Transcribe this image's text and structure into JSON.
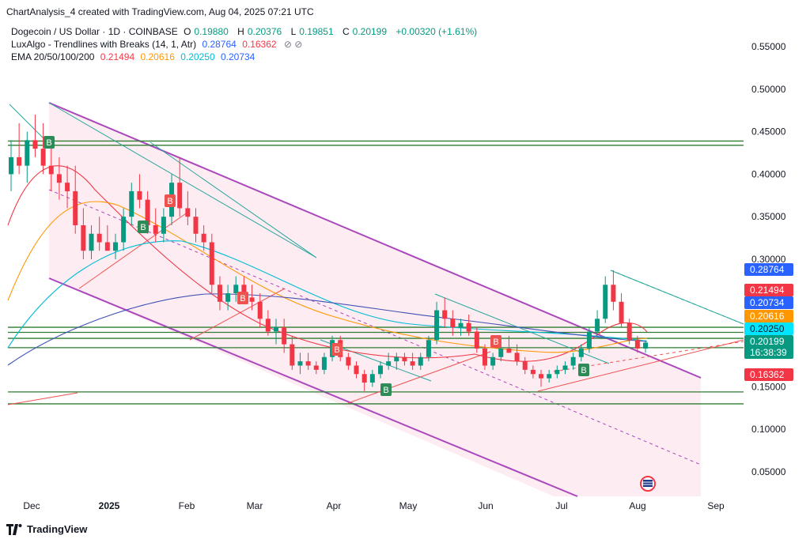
{
  "header": {
    "watermark": "ChartAnalysis_4 created with TradingView.com, Aug 04, 2025 07:21 UTC"
  },
  "legend": {
    "symbol": "Dogecoin / US Dollar · 1D · COINBASE",
    "open_label": "O",
    "open": "0.19880",
    "high_label": "H",
    "high": "0.20376",
    "low_label": "L",
    "low": "0.19851",
    "close_label": "C",
    "close": "0.20199",
    "change": "+0.00320 (+1.61%)",
    "lux_name": "LuxAlgo - Trendlines with Breaks (14, 1, Atr)",
    "lux_v1": "0.28764",
    "lux_v2": "0.16362",
    "ema_name": "EMA 20/50/100/200",
    "ema20": "0.21494",
    "ema50": "0.20616",
    "ema100": "0.20250",
    "ema200": "0.20734",
    "icons": "⊘ ⊘"
  },
  "chart_data": {
    "type": "candlestick",
    "y_ticks": [
      "0.55000",
      "0.50000",
      "0.45000",
      "0.40000",
      "0.35000",
      "0.30000",
      "0.15000",
      "0.10000",
      "0.05000"
    ],
    "x_ticks": [
      "Dec",
      "2025",
      "Feb",
      "Mar",
      "Apr",
      "May",
      "Jun",
      "Jul",
      "Aug",
      "Sep"
    ],
    "ylim": [
      0.02,
      0.575
    ],
    "price_labels": [
      {
        "value": 0.28764,
        "text": "0.28764",
        "color": "#2962ff"
      },
      {
        "value": 0.21494,
        "text": "0.21494",
        "color": "#f23645"
      },
      {
        "value": 0.20734,
        "text": "0.20734",
        "color": "#2962ff"
      },
      {
        "value": 0.20616,
        "text": "0.20616",
        "color": "#ff9800"
      },
      {
        "value": 0.2025,
        "text": "0.20250",
        "color": "#00e5ff"
      },
      {
        "value": 0.20199,
        "text": "0.20199",
        "color": "#089981",
        "sub": "16:38:39"
      },
      {
        "value": 0.16362,
        "text": "0.16362",
        "color": "#f23645"
      }
    ],
    "horizontal_levels": [
      0.439,
      0.434,
      0.22,
      0.214,
      0.207,
      0.196,
      0.144,
      0.13
    ],
    "markers": [
      {
        "date": "Dec 8",
        "text": "B",
        "kind": "buy"
      },
      {
        "date": "Jan 15",
        "text": "B",
        "kind": "buy"
      },
      {
        "date": "Jan 20",
        "text": "B",
        "kind": "sell"
      },
      {
        "date": "Feb 27",
        "text": "B",
        "kind": "sell"
      },
      {
        "date": "Apr 1",
        "text": "B",
        "kind": "sell"
      },
      {
        "date": "Apr 22",
        "text": "B",
        "kind": "buy"
      },
      {
        "date": "Jun 5",
        "text": "B",
        "kind": "sell"
      },
      {
        "date": "Jul 10",
        "text": "B",
        "kind": "buy"
      }
    ],
    "ohlc": [
      [
        0.4,
        0.44,
        0.38,
        0.42
      ],
      [
        0.42,
        0.46,
        0.4,
        0.41
      ],
      [
        0.41,
        0.45,
        0.39,
        0.44
      ],
      [
        0.44,
        0.47,
        0.42,
        0.43
      ],
      [
        0.43,
        0.46,
        0.4,
        0.41
      ],
      [
        0.41,
        0.44,
        0.38,
        0.4
      ],
      [
        0.4,
        0.42,
        0.37,
        0.39
      ],
      [
        0.39,
        0.41,
        0.36,
        0.38
      ],
      [
        0.38,
        0.41,
        0.33,
        0.34
      ],
      [
        0.34,
        0.36,
        0.3,
        0.31
      ],
      [
        0.31,
        0.34,
        0.3,
        0.33
      ],
      [
        0.33,
        0.35,
        0.31,
        0.32
      ],
      [
        0.32,
        0.34,
        0.31,
        0.31
      ],
      [
        0.31,
        0.33,
        0.3,
        0.32
      ],
      [
        0.32,
        0.36,
        0.31,
        0.35
      ],
      [
        0.35,
        0.39,
        0.34,
        0.38
      ],
      [
        0.38,
        0.4,
        0.36,
        0.37
      ],
      [
        0.37,
        0.38,
        0.33,
        0.34
      ],
      [
        0.34,
        0.36,
        0.32,
        0.33
      ],
      [
        0.33,
        0.36,
        0.32,
        0.35
      ],
      [
        0.35,
        0.4,
        0.34,
        0.39
      ],
      [
        0.39,
        0.42,
        0.35,
        0.36
      ],
      [
        0.36,
        0.38,
        0.34,
        0.35
      ],
      [
        0.35,
        0.36,
        0.32,
        0.33
      ],
      [
        0.33,
        0.34,
        0.31,
        0.32
      ],
      [
        0.32,
        0.33,
        0.26,
        0.27
      ],
      [
        0.27,
        0.28,
        0.24,
        0.25
      ],
      [
        0.25,
        0.27,
        0.24,
        0.26
      ],
      [
        0.26,
        0.28,
        0.25,
        0.27
      ],
      [
        0.27,
        0.28,
        0.25,
        0.255
      ],
      [
        0.255,
        0.27,
        0.24,
        0.25
      ],
      [
        0.25,
        0.26,
        0.22,
        0.23
      ],
      [
        0.23,
        0.24,
        0.21,
        0.215
      ],
      [
        0.215,
        0.23,
        0.2,
        0.22
      ],
      [
        0.22,
        0.23,
        0.19,
        0.2
      ],
      [
        0.2,
        0.21,
        0.17,
        0.175
      ],
      [
        0.175,
        0.19,
        0.165,
        0.18
      ],
      [
        0.18,
        0.19,
        0.17,
        0.175
      ],
      [
        0.175,
        0.18,
        0.165,
        0.17
      ],
      [
        0.17,
        0.19,
        0.165,
        0.185
      ],
      [
        0.185,
        0.21,
        0.18,
        0.205
      ],
      [
        0.205,
        0.21,
        0.18,
        0.185
      ],
      [
        0.185,
        0.19,
        0.17,
        0.175
      ],
      [
        0.175,
        0.18,
        0.16,
        0.165
      ],
      [
        0.165,
        0.17,
        0.145,
        0.155
      ],
      [
        0.155,
        0.17,
        0.15,
        0.165
      ],
      [
        0.165,
        0.18,
        0.16,
        0.175
      ],
      [
        0.175,
        0.19,
        0.17,
        0.18
      ],
      [
        0.18,
        0.19,
        0.17,
        0.185
      ],
      [
        0.185,
        0.19,
        0.175,
        0.18
      ],
      [
        0.18,
        0.19,
        0.17,
        0.175
      ],
      [
        0.175,
        0.19,
        0.17,
        0.185
      ],
      [
        0.185,
        0.21,
        0.18,
        0.205
      ],
      [
        0.205,
        0.25,
        0.2,
        0.24
      ],
      [
        0.24,
        0.255,
        0.22,
        0.23
      ],
      [
        0.23,
        0.24,
        0.21,
        0.22
      ],
      [
        0.22,
        0.23,
        0.21,
        0.225
      ],
      [
        0.225,
        0.235,
        0.21,
        0.215
      ],
      [
        0.215,
        0.22,
        0.19,
        0.195
      ],
      [
        0.195,
        0.2,
        0.17,
        0.175
      ],
      [
        0.175,
        0.19,
        0.17,
        0.185
      ],
      [
        0.185,
        0.2,
        0.18,
        0.195
      ],
      [
        0.195,
        0.21,
        0.19,
        0.19
      ],
      [
        0.19,
        0.2,
        0.175,
        0.18
      ],
      [
        0.18,
        0.185,
        0.165,
        0.17
      ],
      [
        0.17,
        0.175,
        0.16,
        0.165
      ],
      [
        0.165,
        0.17,
        0.15,
        0.16
      ],
      [
        0.16,
        0.17,
        0.155,
        0.165
      ],
      [
        0.165,
        0.175,
        0.16,
        0.17
      ],
      [
        0.17,
        0.18,
        0.165,
        0.175
      ],
      [
        0.175,
        0.19,
        0.17,
        0.185
      ],
      [
        0.185,
        0.2,
        0.18,
        0.195
      ],
      [
        0.195,
        0.22,
        0.19,
        0.215
      ],
      [
        0.215,
        0.24,
        0.21,
        0.23
      ],
      [
        0.23,
        0.28,
        0.225,
        0.27
      ],
      [
        0.27,
        0.287,
        0.24,
        0.25
      ],
      [
        0.25,
        0.26,
        0.22,
        0.225
      ],
      [
        0.225,
        0.23,
        0.2,
        0.205
      ],
      [
        0.205,
        0.21,
        0.19,
        0.195
      ],
      [
        0.195,
        0.205,
        0.19,
        0.202
      ]
    ]
  },
  "branding": {
    "name": "TradingView",
    "logo_text": "17"
  }
}
